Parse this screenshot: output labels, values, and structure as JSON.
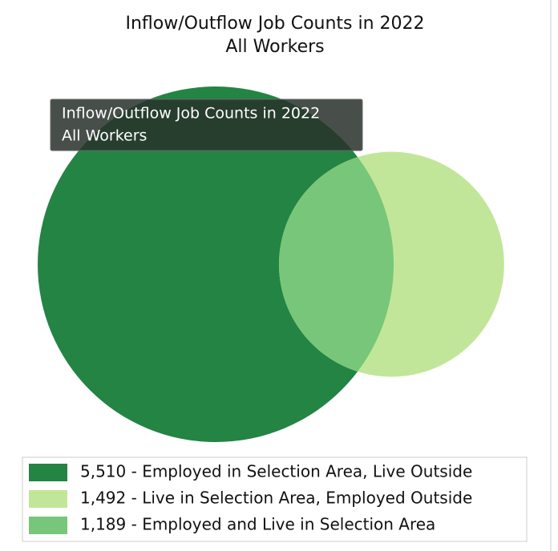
{
  "chart_data": {
    "type": "venn",
    "title": [
      "Inflow/Outflow Job Counts in 2022",
      "All Workers"
    ],
    "tooltip": [
      "Inflow/Outflow Job Counts in 2022",
      "All Workers"
    ],
    "categories": [
      "5,510 - Employed in Selection Area, Live Outside",
      "1,492 - Live in Selection Area, Employed Outside",
      "1,189 - Employed and Live in Selection Area"
    ],
    "values": [
      5510,
      1492,
      1189
    ],
    "colors": [
      "#238443",
      "#c2e699",
      "#78c679"
    ]
  }
}
